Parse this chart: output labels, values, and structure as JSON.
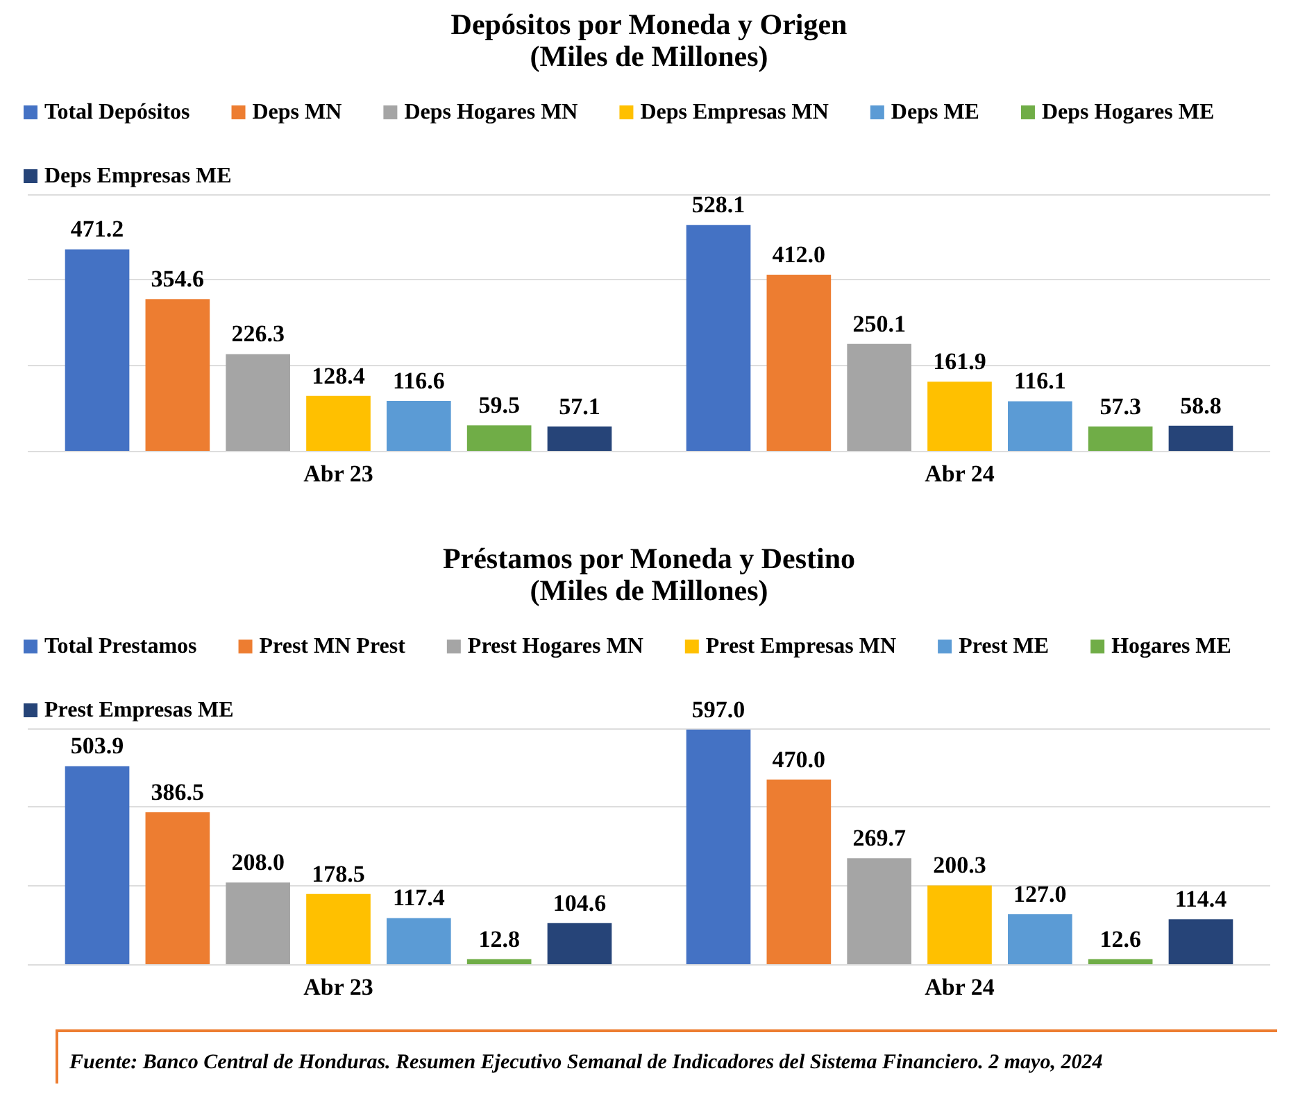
{
  "chart_data": [
    {
      "type": "bar",
      "title": "Depósitos por Moneda y Origen",
      "subtitle": "(Miles de Millones)",
      "categories": [
        "Abr 23",
        "Abr 24"
      ],
      "ylim": [
        0,
        600
      ],
      "yticks": [
        {
          "value": 0,
          "label": null
        },
        {
          "value": 200,
          "label": null
        },
        {
          "value": 400,
          "label": null
        },
        {
          "value": 600,
          "label": null
        }
      ],
      "tick_labels": "x",
      "grid": "y",
      "legend": "top",
      "series": [
        {
          "name": "Total Depósitos",
          "color": "#4472c4",
          "values": [
            471.2,
            528.1
          ],
          "value_labels": [
            "471.2",
            "528.1"
          ]
        },
        {
          "name": "Deps MN",
          "color": "#ed7d31",
          "values": [
            354.6,
            412.0
          ],
          "value_labels": [
            "354.6",
            "412.0"
          ]
        },
        {
          "name": "Deps Hogares MN",
          "color": "#a5a5a5",
          "values": [
            226.3,
            250.1
          ],
          "value_labels": [
            "226.3",
            "250.1"
          ]
        },
        {
          "name": "Deps Empresas MN",
          "color": "#ffc000",
          "values": [
            128.4,
            161.9
          ],
          "value_labels": [
            "128.4",
            "161.9"
          ]
        },
        {
          "name": "Deps ME",
          "color": "#5b9bd5",
          "values": [
            116.6,
            116.1
          ],
          "value_labels": [
            "116.6",
            "116.1"
          ]
        },
        {
          "name": "Deps Hogares ME",
          "color": "#70ad47",
          "values": [
            59.5,
            57.3
          ],
          "value_labels": [
            "59.5",
            "57.3"
          ]
        },
        {
          "name": "Deps Empresas ME",
          "color": "#264478",
          "values": [
            57.1,
            58.8
          ],
          "value_labels": [
            "57.1",
            "58.8"
          ]
        }
      ]
    },
    {
      "type": "bar",
      "title": "Préstamos por Moneda y Destino",
      "subtitle": "(Miles de Millones)",
      "categories": [
        "Abr 23",
        "Abr 24"
      ],
      "ylim": [
        0,
        600
      ],
      "yticks": [
        {
          "value": 0,
          "label": null
        },
        {
          "value": 200,
          "label": null
        },
        {
          "value": 400,
          "label": null
        },
        {
          "value": 600,
          "label": null
        }
      ],
      "tick_labels": "x",
      "grid": "y",
      "legend": "top",
      "annotations": [
        "Fuente: Banco Central de Honduras. Resumen Ejecutivo Semanal de Indicadores del Sistema Financiero. 2 mayo, 2024"
      ],
      "series": [
        {
          "name": "Total Prestamos",
          "color": "#4472c4",
          "values": [
            503.9,
            597.0
          ],
          "value_labels": [
            "503.9",
            "597.0"
          ]
        },
        {
          "name": "Prest MN Prest",
          "color": "#ed7d31",
          "values": [
            386.5,
            470.0
          ],
          "value_labels": [
            "386.5",
            "470.0"
          ]
        },
        {
          "name": "Prest Hogares MN",
          "color": "#a5a5a5",
          "values": [
            208.0,
            269.7
          ],
          "value_labels": [
            "208.0",
            "269.7"
          ]
        },
        {
          "name": "Prest Empresas MN",
          "color": "#ffc000",
          "values": [
            178.5,
            200.3
          ],
          "value_labels": [
            "178.5",
            "200.3"
          ]
        },
        {
          "name": "Prest ME",
          "color": "#5b9bd5",
          "values": [
            117.4,
            127.0
          ],
          "value_labels": [
            "117.4",
            "127.0"
          ]
        },
        {
          "name": "Hogares ME",
          "color": "#70ad47",
          "values": [
            12.8,
            12.6
          ],
          "value_labels": [
            "12.8",
            "12.6"
          ]
        },
        {
          "name": "Prest Empresas ME",
          "color": "#264478",
          "values": [
            104.6,
            114.4
          ],
          "value_labels": [
            "104.6",
            "114.4"
          ]
        }
      ]
    }
  ]
}
